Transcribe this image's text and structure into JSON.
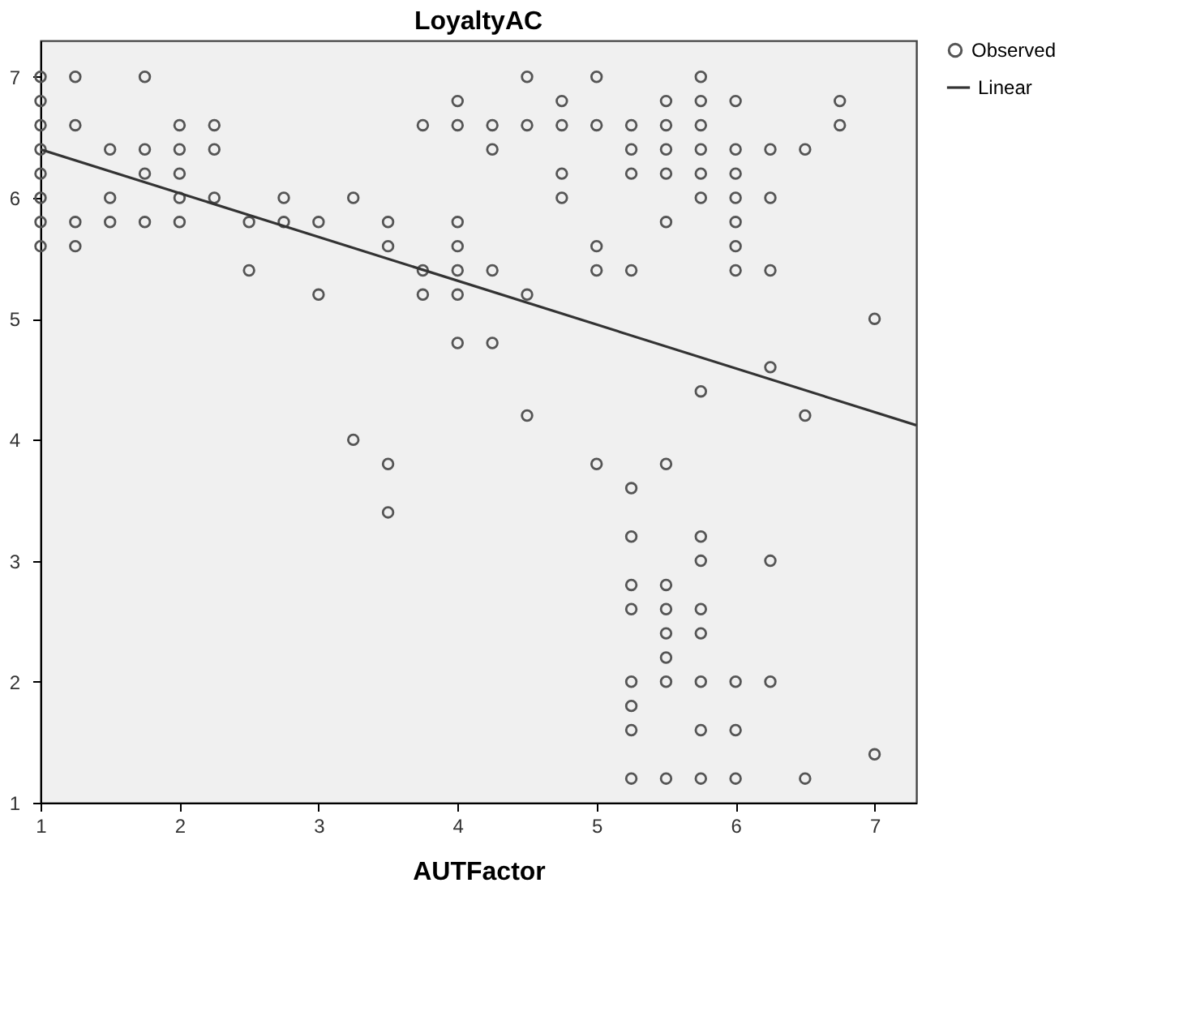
{
  "chart_data": {
    "type": "scatter",
    "title": "LoyaltyAC",
    "xlabel": "AUTFactor",
    "xlim": [
      1,
      7.3
    ],
    "ylim": [
      1,
      7.3
    ],
    "xticks": [
      1,
      2,
      3,
      4,
      5,
      6,
      7
    ],
    "yticks": [
      1,
      2,
      3,
      4,
      5,
      6,
      7
    ],
    "grid": false,
    "legend": "top right",
    "series": [
      {
        "name": "Observed",
        "marker": "circle",
        "color": "#555555",
        "x": [
          1,
          1,
          1,
          1,
          1,
          1,
          1,
          1,
          1.25,
          1.25,
          1.25,
          1.25,
          1.5,
          1.5,
          1.5,
          1.75,
          1.75,
          1.75,
          1.75,
          2,
          2,
          2,
          2,
          2,
          2.25,
          2.25,
          2.25,
          2.5,
          2.5,
          2.75,
          2.75,
          3,
          3,
          3.25,
          3.25,
          3.5,
          3.5,
          3.5,
          3.5,
          3.75,
          3.75,
          3.75,
          4,
          4,
          4,
          4,
          4,
          4,
          4,
          4.25,
          4.25,
          4.25,
          4.25,
          4.5,
          4.5,
          4.5,
          4.5,
          4.75,
          4.75,
          4.75,
          4.75,
          5,
          5,
          5,
          5,
          5,
          5.25,
          5.25,
          5.25,
          5.25,
          5.25,
          5.25,
          5.25,
          5.25,
          5.25,
          5.25,
          5.25,
          5.25,
          5.5,
          5.5,
          5.5,
          5.5,
          5.5,
          5.5,
          5.5,
          5.5,
          5.5,
          5.5,
          5.5,
          5.5,
          5.75,
          5.75,
          5.75,
          5.75,
          5.75,
          5.75,
          5.75,
          5.75,
          5.75,
          5.75,
          5.75,
          5.75,
          5.75,
          5.75,
          6,
          6,
          6,
          6,
          6,
          6,
          6,
          6,
          6,
          6,
          6.25,
          6.25,
          6.25,
          6.25,
          6.25,
          6.25,
          6.5,
          6.5,
          6.5,
          6.75,
          6.75,
          7,
          7
        ],
        "values": [
          7,
          6.8,
          6.6,
          6.4,
          6.2,
          6.0,
          5.8,
          5.6,
          7,
          6.6,
          5.8,
          5.6,
          6.4,
          6.0,
          5.8,
          7,
          6.4,
          6.2,
          5.8,
          6.6,
          6.4,
          6.2,
          6.0,
          5.8,
          6.6,
          6.4,
          6.0,
          5.8,
          5.4,
          6.0,
          5.8,
          5.8,
          5.2,
          6.0,
          4.0,
          5.8,
          5.6,
          3.8,
          3.4,
          6.6,
          5.4,
          5.2,
          6.8,
          6.6,
          5.8,
          5.6,
          5.4,
          5.2,
          4.8,
          6.6,
          6.4,
          5.4,
          4.8,
          7,
          6.6,
          5.2,
          4.2,
          6.8,
          6.6,
          6.2,
          6.0,
          7,
          6.6,
          5.6,
          5.4,
          3.8,
          6.6,
          6.4,
          6.2,
          5.4,
          3.6,
          3.2,
          2.8,
          2.6,
          2.0,
          1.8,
          1.6,
          1.2,
          6.8,
          6.6,
          6.4,
          6.2,
          5.8,
          3.8,
          2.8,
          2.6,
          2.4,
          2.2,
          2.0,
          1.2,
          7,
          6.8,
          6.6,
          6.4,
          6.2,
          6.0,
          4.4,
          3.2,
          3.0,
          2.6,
          2.4,
          2.0,
          1.6,
          1.2,
          6.8,
          6.4,
          6.2,
          6.0,
          5.8,
          5.6,
          5.4,
          2.0,
          1.6,
          1.2,
          6.4,
          6.0,
          5.4,
          4.6,
          3.0,
          2.0,
          6.4,
          4.2,
          1.2,
          6.8,
          6.6,
          5.0,
          1.4
        ]
      },
      {
        "name": "Linear",
        "type": "line",
        "color": "#333333",
        "line_style": "solid",
        "x": [
          1,
          7.3
        ],
        "values": [
          6.4,
          4.12
        ]
      }
    ]
  }
}
